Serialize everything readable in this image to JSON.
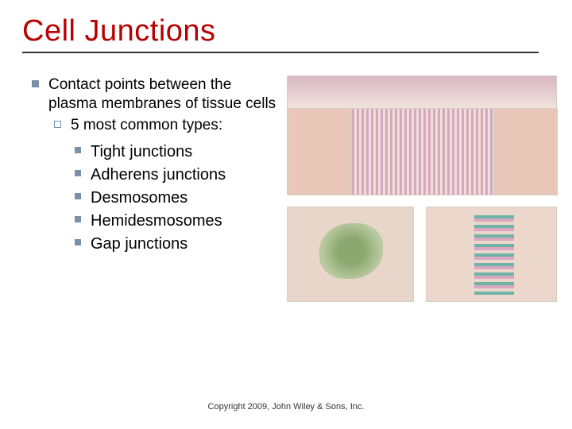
{
  "title": "Cell Junctions",
  "level1": "Contact points between the plasma membranes of tissue cells",
  "level2": "5 most common types:",
  "level3_items": [
    "Tight junctions",
    "Adherens junctions",
    "Desmosomes",
    "Hemidesmosomes",
    "Gap junctions"
  ],
  "footer": "Copyright 2009, John Wiley & Sons, Inc.",
  "colors": {
    "title_color": "#b80000",
    "rule_color": "#333333",
    "bullet_color": "#7a90a8",
    "text_color": "#000000",
    "background": "#ffffff"
  },
  "typography": {
    "title_fontsize": 38,
    "body_fontsize": 19,
    "list_fontsize": 20,
    "footer_fontsize": 11,
    "font_family": "Arial"
  },
  "figure": {
    "description": "Composite biology textbook illustration showing five cell junction types: gap junction, tight junction, desmosome, adherens junction; pink/tan tissue blocks with labeled membrane structures.",
    "tissue_color": "#e9c7b8",
    "background_color": "#f3e7dd",
    "accent_green": "#8aa86f",
    "accent_teal": "#6fb2a6",
    "accent_pink": "#d9a8c0"
  }
}
